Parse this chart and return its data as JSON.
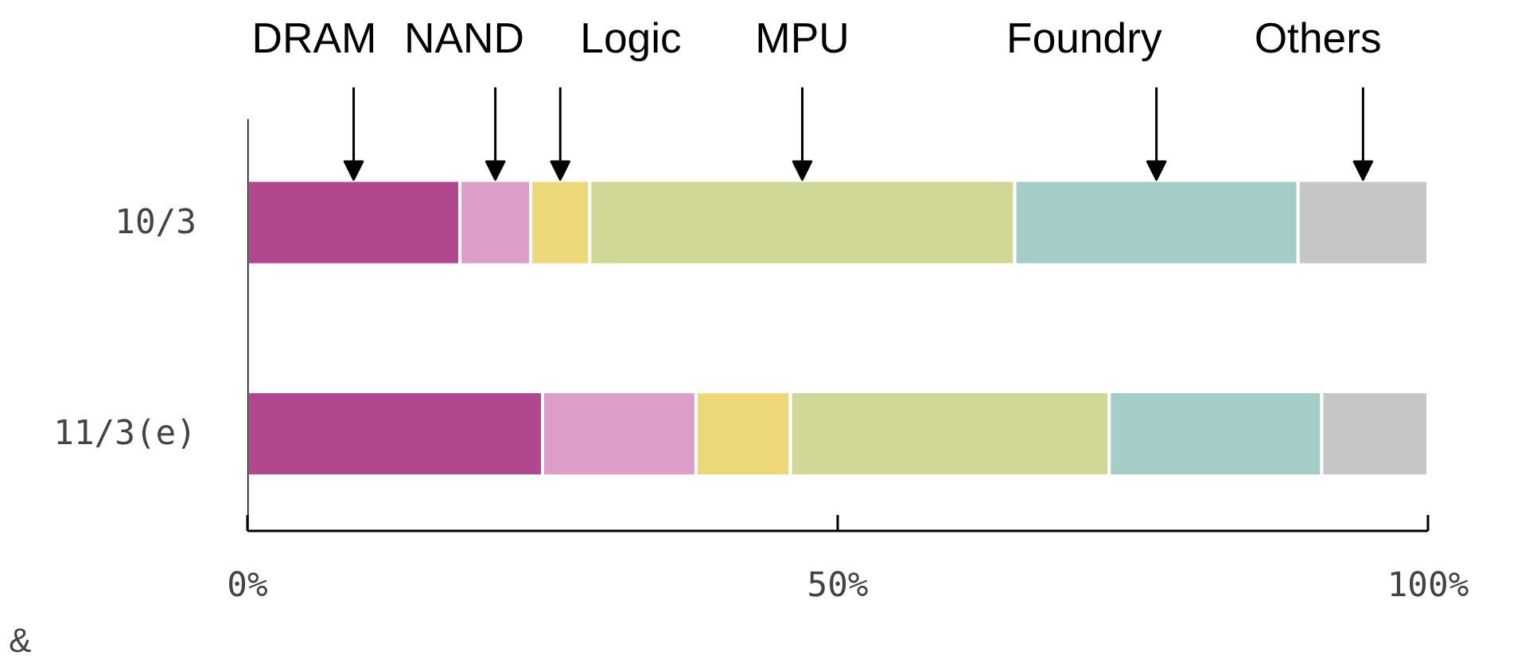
{
  "chart_data": {
    "type": "bar",
    "orientation": "horizontal",
    "stacked": true,
    "categories": [
      "10/3",
      "11/3(e)"
    ],
    "series": [
      {
        "name": "DRAM",
        "color": "#b0478f",
        "values": [
          18,
          25
        ]
      },
      {
        "name": "NAND",
        "color": "#dc9ec8",
        "values": [
          6,
          13
        ]
      },
      {
        "name": "Logic",
        "color": "#ecd878",
        "values": [
          5,
          8
        ]
      },
      {
        "name": "MPU",
        "color": "#d1d896",
        "values": [
          36,
          27
        ]
      },
      {
        "name": "Foundry",
        "color": "#a3cdc6",
        "values": [
          24,
          18
        ]
      },
      {
        "name": "Others",
        "color": "#c6c6c6",
        "values": [
          11,
          9
        ]
      }
    ],
    "xlim": [
      0,
      100
    ],
    "xticks": [
      {
        "value": 0,
        "label": "0%"
      },
      {
        "value": 50,
        "label": "50%"
      },
      {
        "value": 100,
        "label": "100%"
      }
    ],
    "grid": false,
    "annotations": [
      "&"
    ]
  }
}
